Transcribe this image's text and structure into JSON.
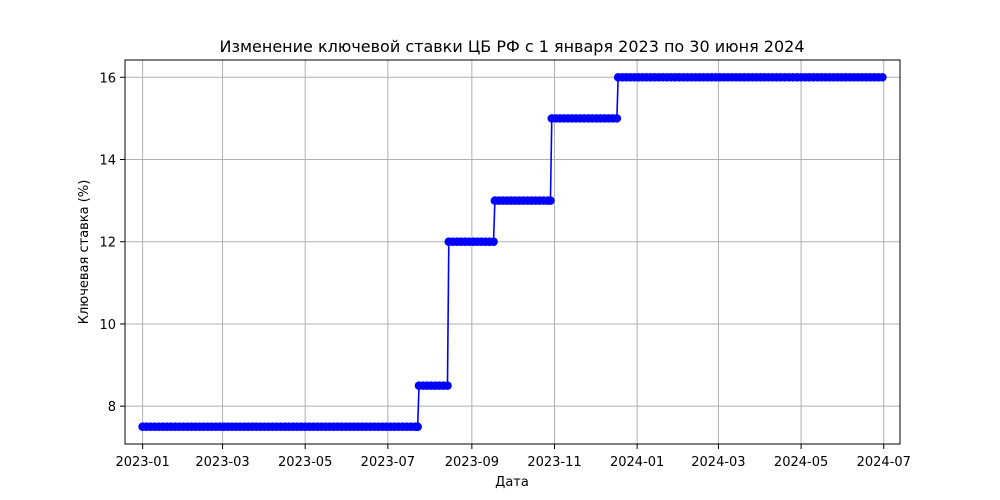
{
  "chart_data": {
    "type": "line",
    "title": "Изменение ключевой ставки ЦБ РФ с 1 января 2023 по 30 июня 2024",
    "xlabel": "Дата",
    "ylabel": "Ключевая ставка (%)",
    "x_range": [
      "2022-12-19",
      "2024-07-13"
    ],
    "ylim": [
      7.08,
      16.42
    ],
    "x_ticks": [
      "2023-01",
      "2023-03",
      "2023-05",
      "2023-07",
      "2023-09",
      "2023-11",
      "2024-01",
      "2024-03",
      "2024-05",
      "2024-07"
    ],
    "y_ticks": [
      8,
      10,
      12,
      14,
      16
    ],
    "grid": true,
    "legend": "none",
    "series": [
      {
        "color": "#0000ff",
        "marker": "circle",
        "line_style": "steps",
        "sampling": "weekly, every 3 days",
        "steps": [
          {
            "from": "2023-01-01",
            "to": "2023-07-23",
            "value": 7.5
          },
          {
            "from": "2023-07-24",
            "to": "2023-08-14",
            "value": 8.5
          },
          {
            "from": "2023-08-15",
            "to": "2023-09-17",
            "value": 12
          },
          {
            "from": "2023-09-18",
            "to": "2023-10-29",
            "value": 13
          },
          {
            "from": "2023-10-30",
            "to": "2023-12-17",
            "value": 15
          },
          {
            "from": "2023-12-18",
            "to": "2024-06-30",
            "value": 16
          }
        ]
      }
    ]
  }
}
